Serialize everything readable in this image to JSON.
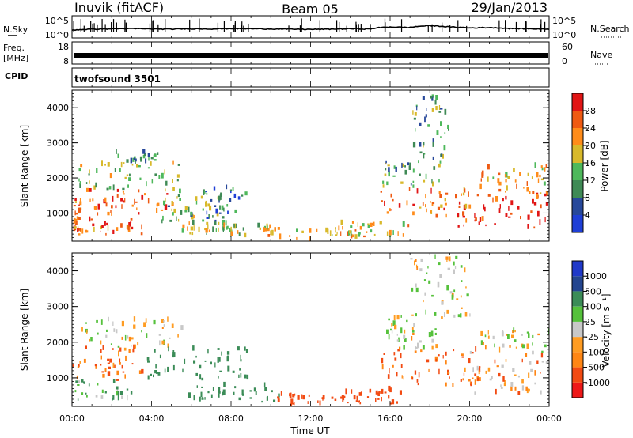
{
  "header": {
    "station": "Inuvik (fitACF)",
    "beam": "Beam 05",
    "date": "29/Jan/2013"
  },
  "summary_panels": {
    "nsky_label": "N.Sky",
    "nsky_ticks": [
      "10^5",
      "10^0"
    ],
    "nsearch_label": "N.Search",
    "freq_label_1": "Freq.",
    "freq_label_2": "[MHz]",
    "freq_ticks_left": [
      "18",
      "8"
    ],
    "nave_label": "Nave",
    "nave_ticks_right": [
      "60",
      "0"
    ],
    "cpid_label": "CPID",
    "cpid_value": "twofsound 3501"
  },
  "colors": {
    "power_scale": [
      "#1f3fd6",
      "#27489a",
      "#3f8a55",
      "#4eb85b",
      "#d8b92b",
      "#ff8c1a",
      "#ef5a12",
      "#e11515"
    ],
    "velocity_scale": [
      "#ee1818",
      "#f24a12",
      "#ff8614",
      "#ff9c22",
      "#c8c8c8",
      "#55c13b",
      "#3b8c57",
      "#24458f",
      "#2039c9"
    ]
  },
  "chart_data": [
    {
      "type": "heatmap",
      "panel": "power",
      "xlabel": "Time UT",
      "ylabel": "Slant Range [km]",
      "xlim": [
        0,
        24
      ],
      "ylim": [
        200,
        4500
      ],
      "xticks": [
        "00:00",
        "04:00",
        "08:00",
        "12:00",
        "16:00",
        "20:00",
        "00:00"
      ],
      "yticks": [
        "1000",
        "2000",
        "3000",
        "4000"
      ],
      "colorbar_label": "Power [dB]",
      "colorbar_ticks": [
        "4",
        "8",
        "12",
        "16",
        "20",
        "24",
        "28"
      ],
      "colorbar_range": [
        0,
        30
      ],
      "regions": [
        {
          "t": [
            0.0,
            0.4
          ],
          "r": [
            350,
            1350
          ],
          "value": 22
        },
        {
          "t": [
            0.1,
            5.0
          ],
          "r": [
            900,
            1600
          ],
          "value": 25
        },
        {
          "t": [
            0.1,
            3.5
          ],
          "r": [
            350,
            800
          ],
          "value": 24
        },
        {
          "t": [
            0.3,
            5.5
          ],
          "r": [
            1600,
            2400
          ],
          "value": 14
        },
        {
          "t": [
            4.5,
            7.5
          ],
          "r": [
            700,
            1600
          ],
          "value": 13
        },
        {
          "t": [
            6.5,
            8.7
          ],
          "r": [
            800,
            1700
          ],
          "value": 7
        },
        {
          "t": [
            2.0,
            4.5
          ],
          "r": [
            2400,
            2700
          ],
          "value": 10
        },
        {
          "t": [
            5.5,
            7.8
          ],
          "r": [
            350,
            700
          ],
          "value": 16
        },
        {
          "t": [
            7.5,
            10.0
          ],
          "r": [
            300,
            650
          ],
          "value": 14
        },
        {
          "t": [
            9.5,
            14.5
          ],
          "r": [
            200,
            600
          ],
          "value": 18
        },
        {
          "t": [
            13.5,
            17.0
          ],
          "r": [
            300,
            700
          ],
          "value": 18
        },
        {
          "t": [
            15.5,
            20.0
          ],
          "r": [
            850,
            1650
          ],
          "value": 22
        },
        {
          "t": [
            15.5,
            18.5
          ],
          "r": [
            1700,
            2500
          ],
          "value": 12
        },
        {
          "t": [
            17.0,
            19.0
          ],
          "r": [
            2500,
            4300
          ],
          "value": 10
        },
        {
          "t": [
            19.0,
            24.0
          ],
          "r": [
            500,
            1500
          ],
          "value": 27
        },
        {
          "t": [
            20.5,
            24.0
          ],
          "r": [
            1500,
            2300
          ],
          "value": 20
        }
      ]
    },
    {
      "type": "heatmap",
      "panel": "velocity",
      "xlabel": "Time UT",
      "ylabel": "Slant Range [km]",
      "xlim": [
        0,
        24
      ],
      "ylim": [
        200,
        4500
      ],
      "xticks": [
        "00:00",
        "04:00",
        "08:00",
        "12:00",
        "16:00",
        "20:00",
        "00:00"
      ],
      "yticks": [
        "1000",
        "2000",
        "3000",
        "4000"
      ],
      "colorbar_label": "Velocity [m s⁻¹]",
      "colorbar_ticks": [
        "1000",
        "500",
        "100",
        "25",
        "-25",
        "-100",
        "-500",
        "-1000"
      ],
      "colorbar_range": [
        -1000,
        1000
      ],
      "regions": [
        {
          "t": [
            0.0,
            3.5
          ],
          "r": [
            900,
            1800
          ],
          "value": -120
        },
        {
          "t": [
            0.1,
            3.0
          ],
          "r": [
            350,
            900
          ],
          "value": 60
        },
        {
          "t": [
            0.3,
            5.5
          ],
          "r": [
            1800,
            2600
          ],
          "value": 0
        },
        {
          "t": [
            3.5,
            8.8
          ],
          "r": [
            900,
            1800
          ],
          "value": 220
        },
        {
          "t": [
            5.5,
            10.5
          ],
          "r": [
            300,
            750
          ],
          "value": 200
        },
        {
          "t": [
            10.0,
            14.5
          ],
          "r": [
            200,
            500
          ],
          "value": -350
        },
        {
          "t": [
            13.5,
            16.5
          ],
          "r": [
            250,
            650
          ],
          "value": -200
        },
        {
          "t": [
            15.5,
            20.5
          ],
          "r": [
            750,
            1750
          ],
          "value": -130
        },
        {
          "t": [
            15.8,
            18.8
          ],
          "r": [
            1750,
            2700
          ],
          "value": 0
        },
        {
          "t": [
            17.0,
            20.0
          ],
          "r": [
            2600,
            4400
          ],
          "value": 0
        },
        {
          "t": [
            20.0,
            24.0
          ],
          "r": [
            500,
            1700
          ],
          "value": -60
        },
        {
          "t": [
            20.5,
            24.0
          ],
          "r": [
            1700,
            2300
          ],
          "value": 0
        }
      ]
    },
    {
      "type": "line",
      "panel": "nsky",
      "x": [
        0,
        1,
        2,
        3,
        4,
        5,
        6,
        7,
        8,
        9,
        10,
        11,
        12,
        13,
        14,
        15,
        16,
        17,
        18,
        19,
        20,
        21,
        22,
        23,
        24
      ],
      "values": [
        30,
        60,
        80,
        90,
        70,
        60,
        80,
        70,
        90,
        80,
        70,
        60,
        50,
        60,
        80,
        70,
        300,
        200,
        800,
        300,
        150,
        200,
        100,
        80,
        60
      ]
    },
    {
      "type": "line",
      "panel": "freq",
      "x": [
        0,
        24
      ],
      "values": [
        10.5,
        10.5
      ]
    }
  ]
}
